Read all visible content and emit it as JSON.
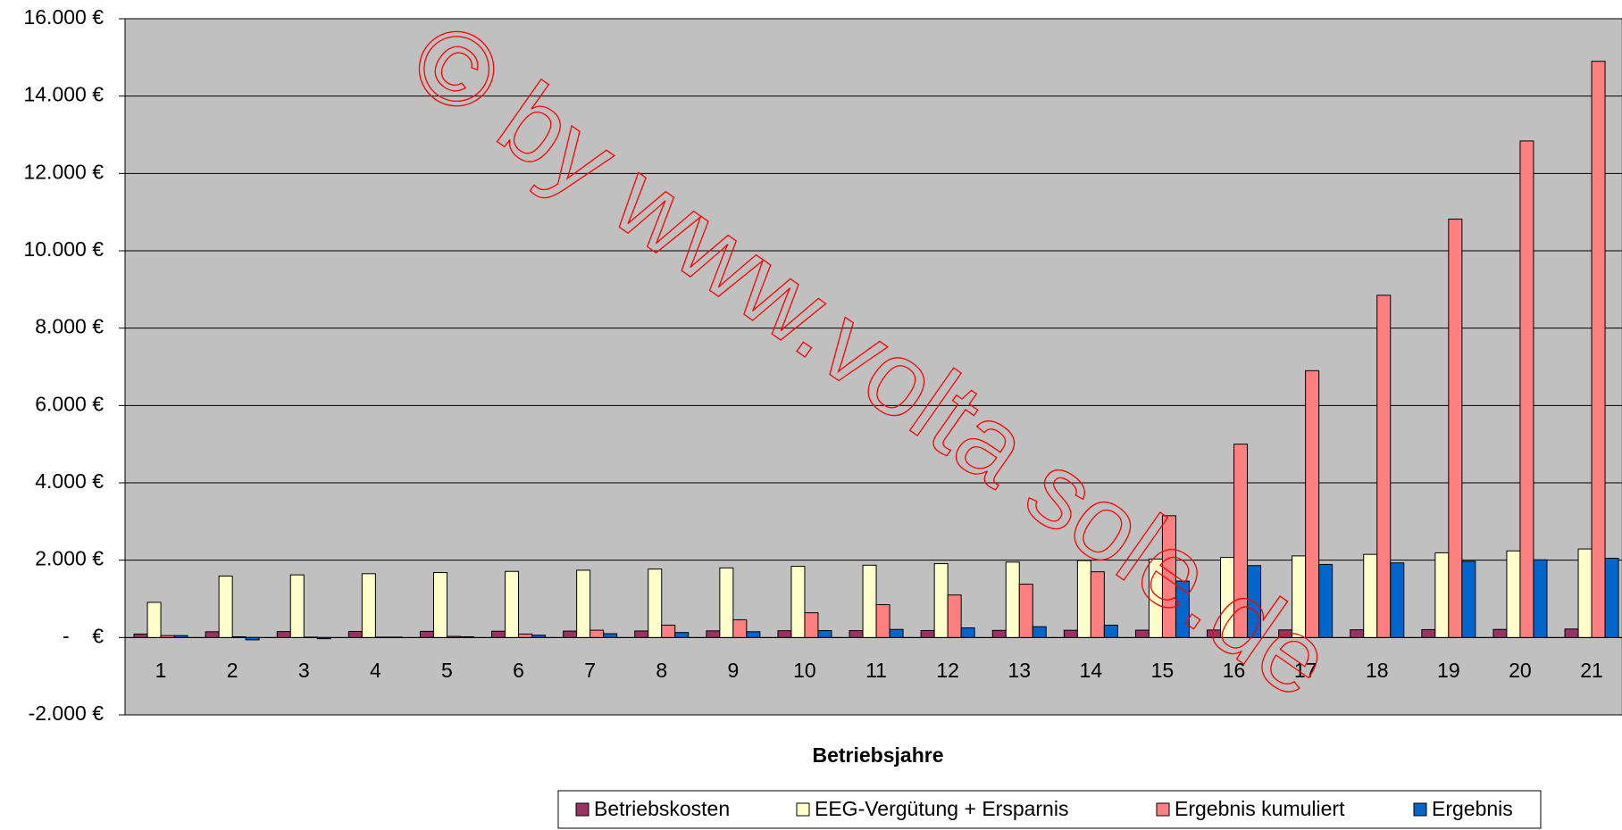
{
  "chart_data": {
    "type": "bar",
    "x_label": "Betriebsjahre",
    "watermark": "© by www.volta sole.de",
    "categories": [
      "1",
      "2",
      "3",
      "4",
      "5",
      "6",
      "7",
      "8",
      "9",
      "10",
      "11",
      "12",
      "13",
      "14",
      "15",
      "16",
      "17",
      "18",
      "19",
      "20",
      "21"
    ],
    "series": [
      {
        "name": "Betriebskosten",
        "color": "#993366",
        "values": [
          90,
          150,
          155,
          158,
          161,
          164,
          167,
          170,
          173,
          176,
          179,
          182,
          185,
          188,
          191,
          194,
          197,
          200,
          205,
          210,
          220
        ]
      },
      {
        "name": "EEG-Vergütung + Ersparnis",
        "color": "#ffffcc",
        "values": [
          910,
          1590,
          1620,
          1650,
          1680,
          1710,
          1740,
          1770,
          1800,
          1840,
          1870,
          1910,
          1950,
          1990,
          2030,
          2070,
          2110,
          2150,
          2190,
          2240,
          2290
        ]
      },
      {
        "name": "Ergebnis kumuliert",
        "color": "#ff8080",
        "values": [
          50,
          20,
          10,
          10,
          30,
          90,
          190,
          320,
          460,
          640,
          850,
          1100,
          1380,
          1700,
          3150,
          5000,
          6900,
          8850,
          10820,
          12840,
          14900
        ]
      },
      {
        "name": "Ergebnis",
        "color": "#0066cc",
        "values": [
          50,
          -60,
          -30,
          10,
          20,
          60,
          100,
          130,
          150,
          180,
          210,
          250,
          280,
          320,
          1460,
          1860,
          1890,
          1930,
          1970,
          2010,
          2050
        ]
      }
    ],
    "ylim": [
      -2000,
      16000
    ],
    "yticks": [
      {
        "value": -2000,
        "label": "-2.000 €"
      },
      {
        "value": 0,
        "label": "-    €"
      },
      {
        "value": 2000,
        "label": "2.000 €"
      },
      {
        "value": 4000,
        "label": "4.000 €"
      },
      {
        "value": 6000,
        "label": "6.000 €"
      },
      {
        "value": 8000,
        "label": "8.000 €"
      },
      {
        "value": 10000,
        "label": "10.000 €"
      },
      {
        "value": 12000,
        "label": "12.000 €"
      },
      {
        "value": 14000,
        "label": "14.000 €"
      },
      {
        "value": 16000,
        "label": "16.000 €"
      }
    ],
    "grid": true,
    "plot_background": "#c0c0c0"
  }
}
